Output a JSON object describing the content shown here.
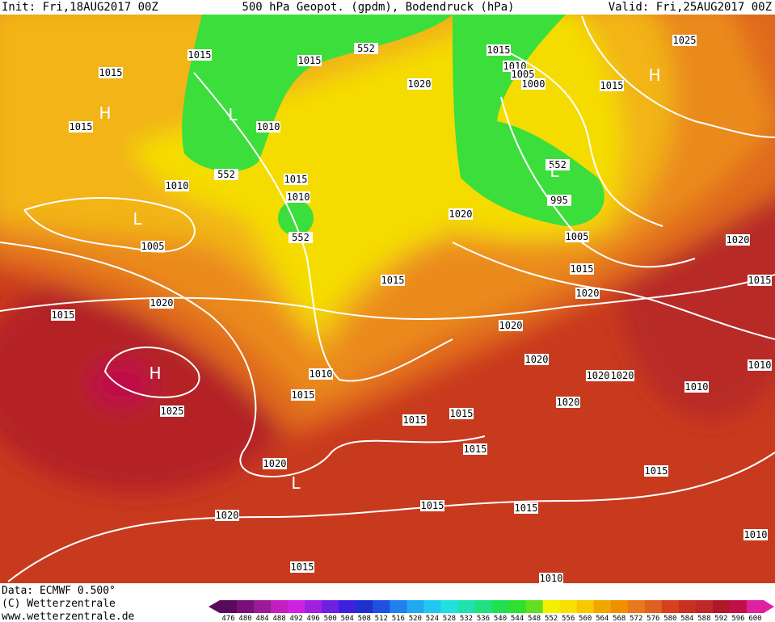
{
  "header": {
    "init": "Init: Fri,18AUG2017 00Z",
    "title": "500 hPa Geopot. (gpdm), Bodendruck (hPa)",
    "valid": "Valid: Fri,25AUG2017 00Z"
  },
  "footer": {
    "data": "Data: ECMWF  0.500°",
    "copyright": "(C) Wetterzentrale",
    "url": "www.wetterzentrale.de"
  },
  "scale": {
    "labels": [
      "476",
      "480",
      "484",
      "488",
      "492",
      "496",
      "500",
      "504",
      "508",
      "512",
      "516",
      "520",
      "524",
      "528",
      "532",
      "536",
      "540",
      "544",
      "548",
      "552",
      "556",
      "560",
      "564",
      "568",
      "572",
      "576",
      "580",
      "584",
      "588",
      "592",
      "596",
      "600"
    ],
    "colors": [
      "#5a0a5a",
      "#7a107a",
      "#9a1a9a",
      "#c21ec2",
      "#d020e0",
      "#a020e0",
      "#7020e0",
      "#4020e0",
      "#2030d0",
      "#2050e0",
      "#2080f0",
      "#20a8f0",
      "#20c8f0",
      "#20e0e0",
      "#20e0b0",
      "#20e080",
      "#20e050",
      "#30e030",
      "#60e020",
      "#f0f000",
      "#f8e000",
      "#f8c800",
      "#f0a800",
      "#f09000",
      "#e87820",
      "#e06020",
      "#d84020",
      "#c83020",
      "#c02828",
      "#b01828",
      "#c0104a",
      "#e020a0"
    ]
  },
  "map": {
    "isobar_labels": [
      "1015",
      "1015",
      "1015",
      "1015",
      "552",
      "1015",
      "1010",
      "1005",
      "1000",
      "1015",
      "1025",
      "1020",
      "1010",
      "552",
      "1015",
      "1010",
      "1010",
      "552",
      "1005",
      "1020",
      "552",
      "995",
      "1005",
      "1015",
      "1015",
      "1020",
      "1020",
      "1015",
      "1015",
      "1020",
      "1020",
      "1010",
      "1015",
      "1025",
      "1020",
      "1020",
      "1020",
      "1010",
      "1010",
      "1020",
      "1015",
      "1015",
      "1015",
      "1020",
      "1015",
      "1020",
      "1015",
      "1015",
      "1015",
      "1010",
      "1010"
    ],
    "centers": [
      "H",
      "H",
      "H",
      "L",
      "L",
      "L",
      "L"
    ]
  }
}
